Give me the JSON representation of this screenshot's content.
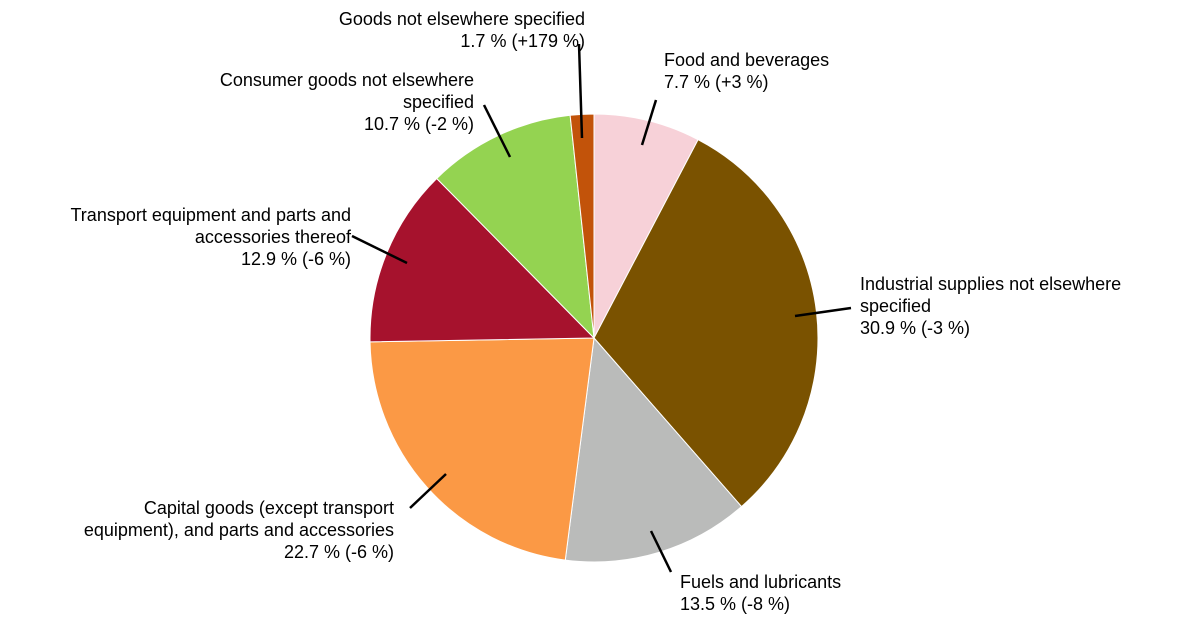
{
  "chart_data": {
    "type": "pie",
    "slices": [
      {
        "label_lines": [
          "Food and beverages"
        ],
        "value": 7.7,
        "value_text": "7.7 % (+3 %)",
        "color": "#f7d1d8"
      },
      {
        "label_lines": [
          "Industrial supplies not elsewhere",
          "specified"
        ],
        "value": 30.9,
        "value_text": "30.9 % (-3 %)",
        "color": "#7a5200"
      },
      {
        "label_lines": [
          "Fuels and lubricants"
        ],
        "value": 13.5,
        "value_text": "13.5 % (-8 %)",
        "color": "#babbba"
      },
      {
        "label_lines": [
          "Capital goods (except transport",
          "equipment), and parts and accessories"
        ],
        "value": 22.7,
        "value_text": "22.7 % (-6 %)",
        "color": "#fb9945"
      },
      {
        "label_lines": [
          "Transport equipment and parts and",
          "accessories thereof"
        ],
        "value": 12.9,
        "value_text": "12.9 % (-6 %)",
        "color": "#a6122d"
      },
      {
        "label_lines": [
          "Consumer goods not elsewhere",
          "specified"
        ],
        "value": 10.7,
        "value_text": "10.7 % (-2 %)",
        "color": "#94d351"
      },
      {
        "label_lines": [
          "Goods not elsewhere specified"
        ],
        "value": 1.7,
        "value_text": "1.7 % (+179 %)",
        "color": "#c2530a"
      }
    ],
    "start": "12 o'clock",
    "direction": "clockwise",
    "legend": "none"
  }
}
